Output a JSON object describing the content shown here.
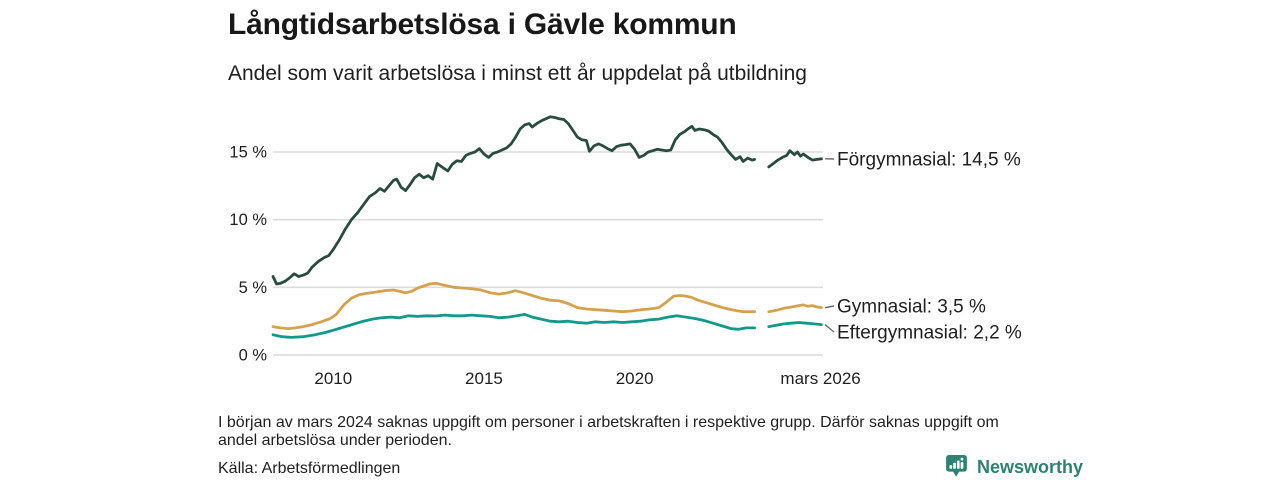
{
  "header": {
    "title": "Långtidsarbetslösa i Gävle kommun",
    "subtitle": "Andel som varit arbetslösa i minst ett år uppdelat på utbildning"
  },
  "chart_data": {
    "type": "line",
    "title": "Långtidsarbetslösa i Gävle kommun",
    "subtitle": "Andel som varit arbetslösa i minst ett år uppdelat på utbildning",
    "xlabel": "",
    "ylabel": "",
    "xlim": [
      2008,
      2026.25
    ],
    "ylim": [
      0,
      18.5
    ],
    "grid": true,
    "legend_position": "right-end-labels",
    "yticks": [
      {
        "v": 0,
        "label": "0 %"
      },
      {
        "v": 5,
        "label": "5 %"
      },
      {
        "v": 10,
        "label": "10 %"
      },
      {
        "v": 15,
        "label": "15 %"
      }
    ],
    "xticks": [
      {
        "t": 2010,
        "label": "2010"
      },
      {
        "t": 2015,
        "label": "2015"
      },
      {
        "t": 2020,
        "label": "2020"
      },
      {
        "t": 2026.17,
        "label": "mars 2026"
      }
    ],
    "gap_period": "mars 2024",
    "series": [
      {
        "name": "Förgymnasial",
        "label": "Förgymnasial: 14,5 %",
        "end_value": "14,5 %",
        "color": "#2a4b3f",
        "segments": [
          [
            [
              2008.0,
              5.8
            ],
            [
              2008.12,
              5.25
            ],
            [
              2008.25,
              5.3
            ],
            [
              2008.4,
              5.45
            ],
            [
              2008.55,
              5.7
            ],
            [
              2008.7,
              6.0
            ],
            [
              2008.85,
              5.8
            ],
            [
              2009.0,
              5.9
            ],
            [
              2009.15,
              6.05
            ],
            [
              2009.3,
              6.5
            ],
            [
              2009.5,
              6.9
            ],
            [
              2009.7,
              7.2
            ],
            [
              2009.85,
              7.35
            ],
            [
              2010.0,
              7.8
            ],
            [
              2010.2,
              8.5
            ],
            [
              2010.4,
              9.3
            ],
            [
              2010.6,
              10.0
            ],
            [
              2010.8,
              10.5
            ],
            [
              2011.0,
              11.1
            ],
            [
              2011.2,
              11.7
            ],
            [
              2011.4,
              12.0
            ],
            [
              2011.55,
              12.3
            ],
            [
              2011.7,
              12.1
            ],
            [
              2011.85,
              12.5
            ],
            [
              2012.0,
              12.9
            ],
            [
              2012.1,
              13.0
            ],
            [
              2012.25,
              12.4
            ],
            [
              2012.4,
              12.15
            ],
            [
              2012.55,
              12.6
            ],
            [
              2012.7,
              13.1
            ],
            [
              2012.85,
              13.35
            ],
            [
              2013.0,
              13.1
            ],
            [
              2013.15,
              13.25
            ],
            [
              2013.3,
              13.0
            ],
            [
              2013.45,
              14.15
            ],
            [
              2013.6,
              13.9
            ],
            [
              2013.8,
              13.6
            ],
            [
              2013.95,
              14.1
            ],
            [
              2014.1,
              14.35
            ],
            [
              2014.25,
              14.3
            ],
            [
              2014.4,
              14.75
            ],
            [
              2014.55,
              14.9
            ],
            [
              2014.7,
              15.0
            ],
            [
              2014.85,
              15.25
            ],
            [
              2015.0,
              14.85
            ],
            [
              2015.15,
              14.6
            ],
            [
              2015.3,
              14.9
            ],
            [
              2015.45,
              15.0
            ],
            [
              2015.6,
              15.15
            ],
            [
              2015.75,
              15.3
            ],
            [
              2015.9,
              15.6
            ],
            [
              2016.05,
              16.1
            ],
            [
              2016.2,
              16.7
            ],
            [
              2016.35,
              17.0
            ],
            [
              2016.5,
              17.1
            ],
            [
              2016.6,
              16.85
            ],
            [
              2016.75,
              17.1
            ],
            [
              2016.9,
              17.3
            ],
            [
              2017.05,
              17.45
            ],
            [
              2017.2,
              17.6
            ],
            [
              2017.35,
              17.55
            ],
            [
              2017.5,
              17.45
            ],
            [
              2017.65,
              17.4
            ],
            [
              2017.8,
              17.1
            ],
            [
              2017.95,
              16.6
            ],
            [
              2018.1,
              16.1
            ],
            [
              2018.25,
              15.9
            ],
            [
              2018.4,
              15.85
            ],
            [
              2018.5,
              15.05
            ],
            [
              2018.65,
              15.45
            ],
            [
              2018.8,
              15.6
            ],
            [
              2018.95,
              15.45
            ],
            [
              2019.1,
              15.25
            ],
            [
              2019.25,
              15.1
            ],
            [
              2019.4,
              15.4
            ],
            [
              2019.55,
              15.5
            ],
            [
              2019.7,
              15.55
            ],
            [
              2019.85,
              15.6
            ],
            [
              2020.0,
              15.2
            ],
            [
              2020.15,
              14.6
            ],
            [
              2020.3,
              14.75
            ],
            [
              2020.45,
              15.0
            ],
            [
              2020.6,
              15.1
            ],
            [
              2020.75,
              15.2
            ],
            [
              2020.9,
              15.15
            ],
            [
              2021.05,
              15.1
            ],
            [
              2021.2,
              15.15
            ],
            [
              2021.35,
              15.9
            ],
            [
              2021.5,
              16.3
            ],
            [
              2021.65,
              16.5
            ],
            [
              2021.8,
              16.75
            ],
            [
              2021.9,
              16.9
            ],
            [
              2022.0,
              16.6
            ],
            [
              2022.15,
              16.7
            ],
            [
              2022.3,
              16.65
            ],
            [
              2022.45,
              16.55
            ],
            [
              2022.6,
              16.3
            ],
            [
              2022.75,
              16.1
            ],
            [
              2022.9,
              15.7
            ],
            [
              2023.05,
              15.2
            ],
            [
              2023.2,
              14.8
            ],
            [
              2023.35,
              14.45
            ],
            [
              2023.5,
              14.65
            ],
            [
              2023.6,
              14.3
            ],
            [
              2023.75,
              14.55
            ],
            [
              2023.9,
              14.4
            ],
            [
              2023.98,
              14.45
            ]
          ],
          [
            [
              2024.45,
              13.9
            ],
            [
              2024.6,
              14.15
            ],
            [
              2024.75,
              14.4
            ],
            [
              2024.9,
              14.6
            ],
            [
              2025.05,
              14.75
            ],
            [
              2025.15,
              15.1
            ],
            [
              2025.3,
              14.8
            ],
            [
              2025.4,
              15.0
            ],
            [
              2025.5,
              14.7
            ],
            [
              2025.6,
              14.85
            ],
            [
              2025.75,
              14.6
            ],
            [
              2025.9,
              14.4
            ],
            [
              2026.05,
              14.45
            ],
            [
              2026.2,
              14.5
            ]
          ]
        ]
      },
      {
        "name": "Gymnasial",
        "label": "Gymnasial:  3,5 %",
        "end_value": "3,5 %",
        "color": "#d6a14e",
        "segments": [
          [
            [
              2008.0,
              2.1
            ],
            [
              2008.25,
              2.0
            ],
            [
              2008.5,
              1.95
            ],
            [
              2008.75,
              2.0
            ],
            [
              2009.0,
              2.1
            ],
            [
              2009.3,
              2.25
            ],
            [
              2009.6,
              2.45
            ],
            [
              2009.9,
              2.7
            ],
            [
              2010.1,
              3.0
            ],
            [
              2010.35,
              3.7
            ],
            [
              2010.6,
              4.2
            ],
            [
              2010.85,
              4.45
            ],
            [
              2011.1,
              4.55
            ],
            [
              2011.4,
              4.65
            ],
            [
              2011.7,
              4.75
            ],
            [
              2012.0,
              4.8
            ],
            [
              2012.2,
              4.7
            ],
            [
              2012.4,
              4.6
            ],
            [
              2012.6,
              4.7
            ],
            [
              2012.8,
              4.95
            ],
            [
              2013.0,
              5.1
            ],
            [
              2013.2,
              5.25
            ],
            [
              2013.4,
              5.3
            ],
            [
              2013.6,
              5.2
            ],
            [
              2013.8,
              5.1
            ],
            [
              2014.0,
              5.0
            ],
            [
              2014.3,
              4.95
            ],
            [
              2014.6,
              4.9
            ],
            [
              2014.9,
              4.8
            ],
            [
              2015.2,
              4.6
            ],
            [
              2015.5,
              4.5
            ],
            [
              2015.8,
              4.6
            ],
            [
              2016.05,
              4.75
            ],
            [
              2016.3,
              4.6
            ],
            [
              2016.6,
              4.4
            ],
            [
              2016.9,
              4.2
            ],
            [
              2017.2,
              4.05
            ],
            [
              2017.5,
              4.0
            ],
            [
              2017.8,
              3.8
            ],
            [
              2018.1,
              3.5
            ],
            [
              2018.4,
              3.4
            ],
            [
              2018.7,
              3.35
            ],
            [
              2019.0,
              3.3
            ],
            [
              2019.3,
              3.25
            ],
            [
              2019.6,
              3.2
            ],
            [
              2019.9,
              3.25
            ],
            [
              2020.2,
              3.35
            ],
            [
              2020.5,
              3.4
            ],
            [
              2020.8,
              3.5
            ],
            [
              2021.05,
              3.9
            ],
            [
              2021.3,
              4.35
            ],
            [
              2021.5,
              4.4
            ],
            [
              2021.7,
              4.35
            ],
            [
              2021.9,
              4.25
            ],
            [
              2022.1,
              4.05
            ],
            [
              2022.4,
              3.85
            ],
            [
              2022.7,
              3.65
            ],
            [
              2023.0,
              3.45
            ],
            [
              2023.3,
              3.3
            ],
            [
              2023.6,
              3.2
            ],
            [
              2023.98,
              3.2
            ]
          ],
          [
            [
              2024.45,
              3.2
            ],
            [
              2024.7,
              3.3
            ],
            [
              2024.95,
              3.45
            ],
            [
              2025.2,
              3.55
            ],
            [
              2025.45,
              3.65
            ],
            [
              2025.6,
              3.7
            ],
            [
              2025.75,
              3.6
            ],
            [
              2025.9,
              3.65
            ],
            [
              2026.05,
              3.55
            ],
            [
              2026.2,
              3.5
            ]
          ]
        ]
      },
      {
        "name": "Eftergymnasial",
        "label": "Eftergymnasial:  2,2 %",
        "end_value": "2,2 %",
        "color": "#13998a",
        "segments": [
          [
            [
              2008.0,
              1.5
            ],
            [
              2008.3,
              1.35
            ],
            [
              2008.6,
              1.3
            ],
            [
              2009.0,
              1.35
            ],
            [
              2009.4,
              1.5
            ],
            [
              2009.8,
              1.7
            ],
            [
              2010.1,
              1.9
            ],
            [
              2010.4,
              2.1
            ],
            [
              2010.7,
              2.3
            ],
            [
              2011.0,
              2.5
            ],
            [
              2011.3,
              2.65
            ],
            [
              2011.6,
              2.75
            ],
            [
              2011.9,
              2.8
            ],
            [
              2012.2,
              2.75
            ],
            [
              2012.5,
              2.9
            ],
            [
              2012.8,
              2.85
            ],
            [
              2013.1,
              2.9
            ],
            [
              2013.4,
              2.88
            ],
            [
              2013.7,
              2.95
            ],
            [
              2014.0,
              2.9
            ],
            [
              2014.3,
              2.9
            ],
            [
              2014.6,
              2.95
            ],
            [
              2014.9,
              2.9
            ],
            [
              2015.2,
              2.85
            ],
            [
              2015.5,
              2.75
            ],
            [
              2015.8,
              2.8
            ],
            [
              2016.1,
              2.9
            ],
            [
              2016.35,
              3.0
            ],
            [
              2016.6,
              2.8
            ],
            [
              2016.9,
              2.65
            ],
            [
              2017.2,
              2.5
            ],
            [
              2017.5,
              2.45
            ],
            [
              2017.8,
              2.5
            ],
            [
              2018.1,
              2.4
            ],
            [
              2018.4,
              2.35
            ],
            [
              2018.7,
              2.45
            ],
            [
              2019.0,
              2.4
            ],
            [
              2019.3,
              2.45
            ],
            [
              2019.6,
              2.4
            ],
            [
              2019.9,
              2.45
            ],
            [
              2020.2,
              2.5
            ],
            [
              2020.5,
              2.6
            ],
            [
              2020.8,
              2.65
            ],
            [
              2021.1,
              2.8
            ],
            [
              2021.4,
              2.9
            ],
            [
              2021.7,
              2.8
            ],
            [
              2022.0,
              2.7
            ],
            [
              2022.3,
              2.55
            ],
            [
              2022.6,
              2.35
            ],
            [
              2022.9,
              2.15
            ],
            [
              2023.2,
              1.95
            ],
            [
              2023.45,
              1.9
            ],
            [
              2023.7,
              2.0
            ],
            [
              2023.98,
              2.0
            ]
          ],
          [
            [
              2024.45,
              2.1
            ],
            [
              2024.7,
              2.2
            ],
            [
              2024.95,
              2.3
            ],
            [
              2025.2,
              2.35
            ],
            [
              2025.45,
              2.4
            ],
            [
              2025.7,
              2.35
            ],
            [
              2025.95,
              2.3
            ],
            [
              2026.2,
              2.25
            ]
          ]
        ]
      }
    ]
  },
  "footnote": {
    "line1": "I början av mars 2024 saknas uppgift om personer i arbetskraften i respektive grupp. Därför saknas uppgift om",
    "line2": "andel arbetslösa under perioden."
  },
  "source": "Källa: Arbetsförmedlingen",
  "branding": {
    "name": "Newsworthy",
    "color": "#2e8173"
  }
}
